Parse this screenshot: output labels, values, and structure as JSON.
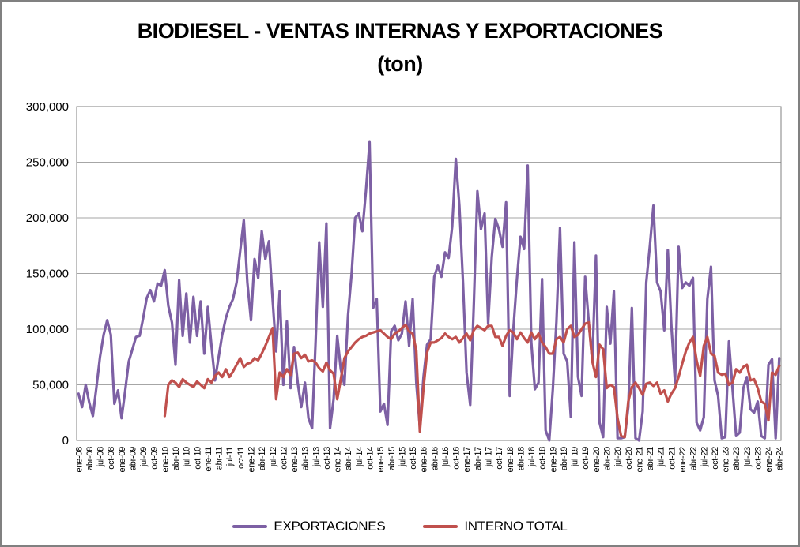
{
  "title": {
    "line1": "BIODIESEL - VENTAS INTERNAS Y EXPORTACIONES",
    "line2": "(ton)"
  },
  "legend": [
    {
      "label": "EXPORTACIONES",
      "color": "#7D60A4"
    },
    {
      "label": "INTERNO TOTAL",
      "color": "#C0504D"
    }
  ],
  "colors": {
    "frame_border": "#808080",
    "gridline": "#a6a6a6",
    "plot_border": "#808080",
    "background": "#ffffff"
  },
  "chart_data": {
    "type": "line",
    "title": "BIODIESEL - VENTAS INTERNAS Y EXPORTACIONES (ton)",
    "unit": "ton",
    "ylim": [
      0,
      300000
    ],
    "grid": true,
    "legend_position": "bottom",
    "y_tick_values": [
      0,
      50000,
      100000,
      150000,
      200000,
      250000,
      300000
    ],
    "y_tick_labels": [
      "0",
      "50,000",
      "100,000",
      "150,000",
      "200,000",
      "250,000",
      "300,000"
    ],
    "months_per_tick": 3,
    "x_tick_labels": [
      "ene-08",
      "abr-08",
      "jul-08",
      "oct-08",
      "ene-09",
      "abr-09",
      "jul-09",
      "oct-09",
      "ene-10",
      "abr-10",
      "jul-10",
      "oct-10",
      "ene-11",
      "abr-11",
      "jul-11",
      "oct-11",
      "ene-12",
      "abr-12",
      "jul-12",
      "oct-12",
      "ene-13",
      "abr-13",
      "jul-13",
      "oct-13",
      "ene-14",
      "abr-14",
      "jul-14",
      "oct-14",
      "ene-15",
      "abr-15",
      "jul-15",
      "oct-15",
      "ene-16",
      "abr-16",
      "jul-16",
      "oct-16",
      "ene-17",
      "abr-17",
      "jul-17",
      "oct-17",
      "ene-18",
      "abr-18",
      "jul-18",
      "oct-18",
      "ene-19",
      "abr-19",
      "jul-19",
      "oct-19",
      "ene-20",
      "abr-20",
      "jul-20",
      "oct-20",
      "ene-21",
      "abr-21",
      "jul-21",
      "oct-21",
      "ene-22",
      "abr-22",
      "jul-22",
      "oct-22",
      "ene-23",
      "abr-23",
      "jul-23",
      "oct-23",
      "ene-24",
      "abr-24"
    ],
    "series": [
      {
        "name": "EXPORTACIONES",
        "color": "#7D60A4",
        "values": [
          42000,
          30000,
          50000,
          34000,
          22000,
          48000,
          75000,
          95000,
          108000,
          95000,
          33000,
          45000,
          20000,
          45000,
          71000,
          82000,
          93000,
          94000,
          110000,
          128000,
          135000,
          125000,
          141000,
          139000,
          153000,
          121000,
          106000,
          68000,
          144000,
          94000,
          132000,
          88000,
          129000,
          94000,
          125000,
          78000,
          120000,
          85000,
          54000,
          75000,
          95000,
          110000,
          120000,
          127000,
          142000,
          170000,
          198000,
          142000,
          108000,
          163000,
          146000,
          188000,
          163000,
          179000,
          127000,
          80000,
          134000,
          50000,
          107000,
          47000,
          84000,
          52000,
          30000,
          52000,
          20000,
          11000,
          90000,
          178000,
          120000,
          195000,
          11000,
          37000,
          94000,
          64000,
          50000,
          112000,
          150000,
          200000,
          204000,
          188000,
          224000,
          268000,
          119000,
          127000,
          26000,
          33000,
          14000,
          98000,
          103000,
          90000,
          96000,
          125000,
          85000,
          127000,
          52000,
          12000,
          57000,
          86000,
          91000,
          147000,
          157000,
          147000,
          169000,
          164000,
          192000,
          253000,
          211000,
          142000,
          61000,
          32000,
          121000,
          224000,
          190000,
          204000,
          105000,
          165000,
          199000,
          190000,
          174000,
          214000,
          40000,
          99000,
          145000,
          183000,
          172000,
          247000,
          88000,
          46000,
          52000,
          145000,
          9000,
          0,
          46000,
          107000,
          191000,
          78000,
          71000,
          21000,
          178000,
          57000,
          40000,
          147000,
          106000,
          71000,
          166000,
          16000,
          3000,
          120000,
          87000,
          134000,
          2000,
          2000,
          3000,
          30000,
          119000,
          2000,
          0,
          26000,
          142000,
          175000,
          211000,
          142000,
          134000,
          99000,
          171000,
          103000,
          52000,
          174000,
          137000,
          142000,
          139000,
          146000,
          16000,
          9000,
          21000,
          127000,
          156000,
          54000,
          40000,
          2000,
          3000,
          89000,
          47000,
          4000,
          7000,
          47000,
          57000,
          28000,
          25000,
          35000,
          4000,
          2000,
          68000,
          73000,
          2000,
          74000
        ]
      },
      {
        "name": "INTERNO TOTAL",
        "color": "#C0504D",
        "values": [
          null,
          null,
          null,
          null,
          null,
          null,
          null,
          null,
          null,
          null,
          null,
          null,
          null,
          null,
          null,
          null,
          null,
          null,
          null,
          null,
          null,
          null,
          null,
          null,
          22000,
          50000,
          54000,
          52000,
          48000,
          55000,
          52000,
          50000,
          48000,
          53000,
          50000,
          47000,
          55000,
          52000,
          58000,
          61000,
          57000,
          64000,
          57000,
          62000,
          68000,
          74000,
          66000,
          69000,
          70000,
          74000,
          72000,
          78000,
          85000,
          93000,
          101000,
          37000,
          61000,
          57000,
          64000,
          59000,
          78000,
          79000,
          74000,
          77000,
          71000,
          72000,
          70000,
          65000,
          62000,
          70000,
          63000,
          60000,
          37000,
          55000,
          74000,
          80000,
          84000,
          88000,
          91000,
          93000,
          94000,
          96000,
          97000,
          98000,
          99000,
          96000,
          93000,
          91000,
          96000,
          98000,
          101000,
          104000,
          98000,
          96000,
          81000,
          8000,
          47000,
          79000,
          88000,
          88000,
          90000,
          92000,
          96000,
          93000,
          91000,
          93000,
          88000,
          92000,
          96000,
          90000,
          99000,
          103000,
          101000,
          99000,
          103000,
          103000,
          93000,
          93000,
          85000,
          94000,
          99000,
          97000,
          91000,
          97000,
          92000,
          88000,
          97000,
          91000,
          96000,
          88000,
          84000,
          78000,
          78000,
          91000,
          93000,
          88000,
          100000,
          103000,
          93000,
          95000,
          100000,
          105000,
          106000,
          71000,
          57000,
          86000,
          82000,
          47000,
          50000,
          48000,
          20000,
          4000,
          3000,
          35000,
          48000,
          52000,
          47000,
          41000,
          51000,
          52000,
          49000,
          52000,
          42000,
          45000,
          35000,
          42000,
          47000,
          57000,
          69000,
          80000,
          88000,
          93000,
          72000,
          58000,
          85000,
          93000,
          78000,
          76000,
          61000,
          59000,
          60000,
          50000,
          52000,
          64000,
          61000,
          66000,
          68000,
          54000,
          55000,
          47000,
          35000,
          33000,
          18000,
          61000,
          59000,
          67000
        ]
      }
    ]
  }
}
